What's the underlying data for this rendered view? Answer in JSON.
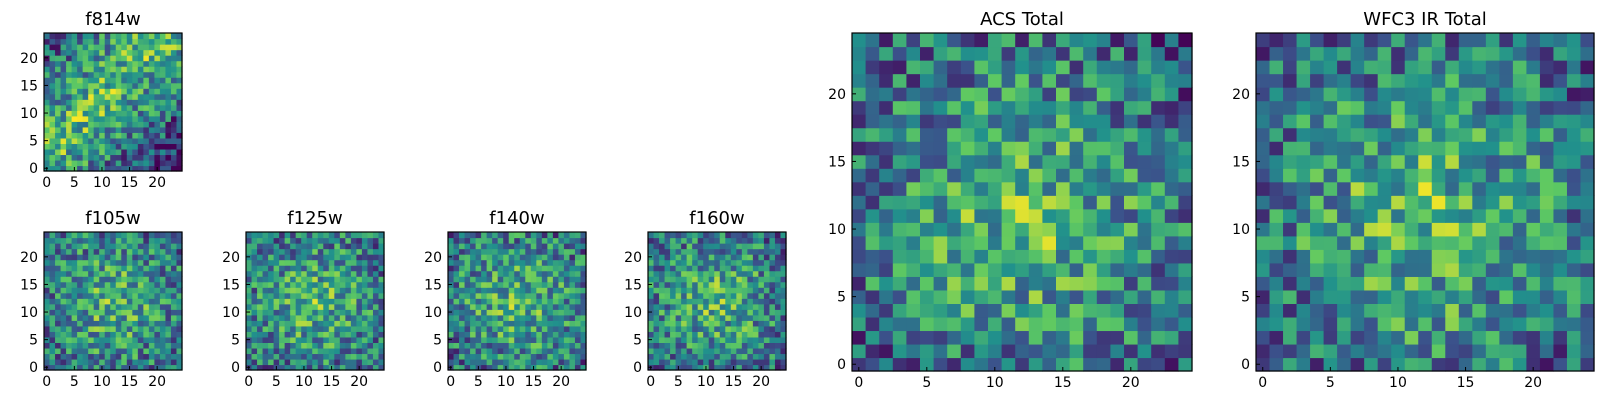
{
  "chart_data": [
    {
      "type": "heatmap",
      "title": "f814w",
      "grid_size": 25,
      "xticks": [
        "0",
        "5",
        "10",
        "15",
        "20"
      ],
      "yticks": [
        "0",
        "5",
        "10",
        "15",
        "20"
      ],
      "seed": 11,
      "pattern": "diagonal"
    },
    {
      "type": "heatmap",
      "title": "f105w",
      "grid_size": 25,
      "xticks": [
        "0",
        "5",
        "10",
        "15",
        "20"
      ],
      "yticks": [
        "0",
        "5",
        "10",
        "15",
        "20"
      ],
      "seed": 23,
      "pattern": "blob"
    },
    {
      "type": "heatmap",
      "title": "f125w",
      "grid_size": 25,
      "xticks": [
        "0",
        "5",
        "10",
        "15",
        "20"
      ],
      "yticks": [
        "0",
        "5",
        "10",
        "15",
        "20"
      ],
      "seed": 37,
      "pattern": "blob"
    },
    {
      "type": "heatmap",
      "title": "f140w",
      "grid_size": 25,
      "xticks": [
        "0",
        "5",
        "10",
        "15",
        "20"
      ],
      "yticks": [
        "0",
        "5",
        "10",
        "15",
        "20"
      ],
      "seed": 41,
      "pattern": "blob"
    },
    {
      "type": "heatmap",
      "title": "f160w",
      "grid_size": 25,
      "xticks": [
        "0",
        "5",
        "10",
        "15",
        "20"
      ],
      "yticks": [
        "0",
        "5",
        "10",
        "15",
        "20"
      ],
      "seed": 53,
      "pattern": "blob"
    },
    {
      "type": "heatmap",
      "title": "ACS Total",
      "grid_size": 25,
      "xticks": [
        "0",
        "5",
        "10",
        "15",
        "20"
      ],
      "yticks": [
        "0",
        "5",
        "10",
        "15",
        "20"
      ],
      "seed": 67,
      "pattern": "center"
    },
    {
      "type": "heatmap",
      "title": "WFC3 IR Total",
      "grid_size": 25,
      "xticks": [
        "0",
        "5",
        "10",
        "15",
        "20"
      ],
      "yticks": [
        "0",
        "5",
        "10",
        "15",
        "20"
      ],
      "seed": 79,
      "pattern": "center"
    }
  ],
  "colormap": [
    "#440154",
    "#3b528b",
    "#21918c",
    "#5ec962",
    "#fde725"
  ]
}
